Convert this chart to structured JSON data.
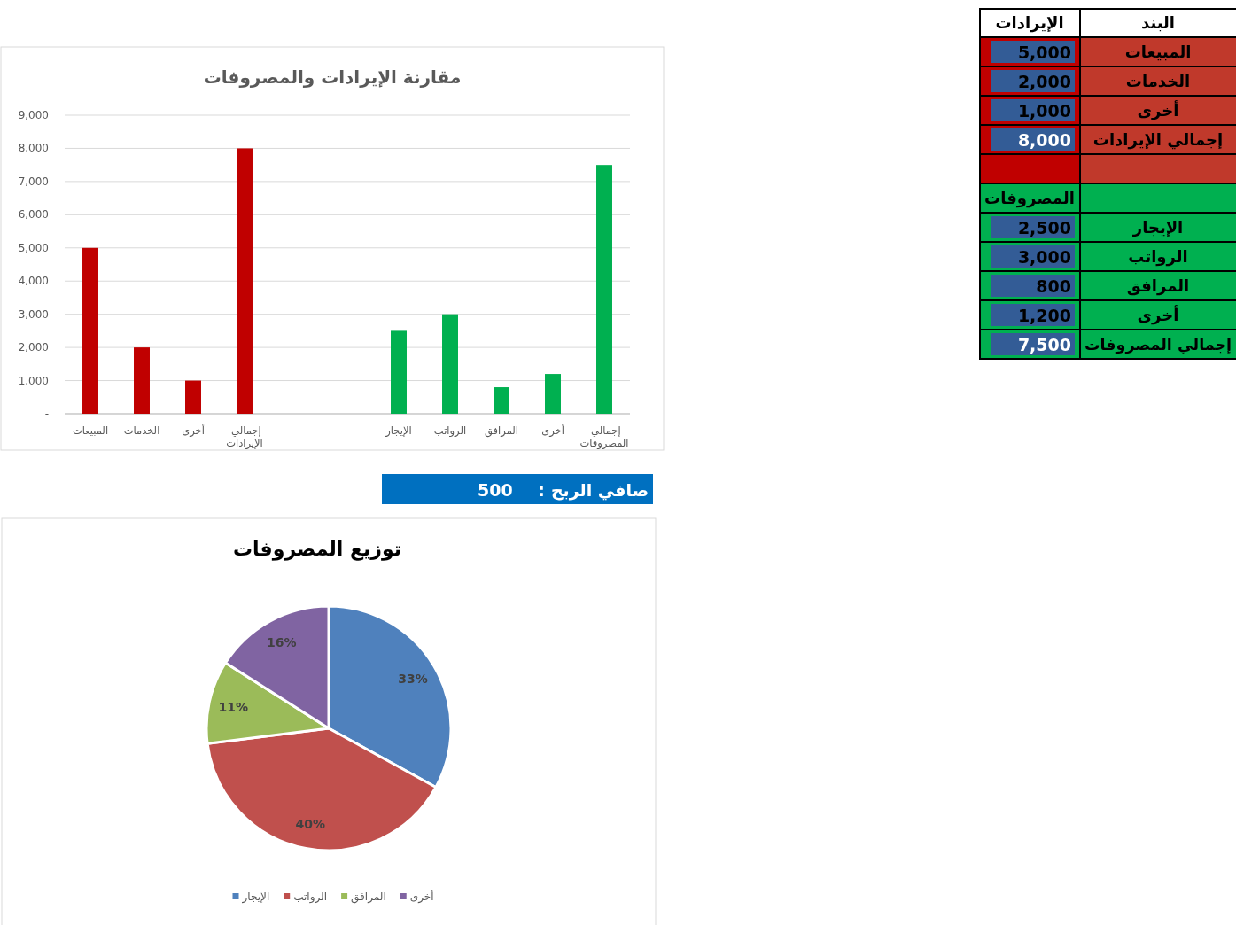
{
  "chart_data": [
    {
      "type": "other",
      "xlabel": "البند",
      "categories": [
        "المبيعات",
        "الخدمات",
        "أخرى",
        "إجمالي الإيرادات",
        null,
        null,
        "الإيجار",
        "الرواتب",
        "المرافق",
        "أخرى",
        "إجمالي المصروفات"
      ],
      "series": [
        {
          "name": "الإيرادات",
          "values": [
            5000,
            2000,
            1000,
            8000,
            null,
            null,
            null,
            null,
            null,
            null,
            null
          ],
          "value_labels": [
            "5,000",
            "2,000",
            "1,000",
            "8,000",
            null,
            null,
            null,
            null,
            null,
            null,
            null
          ]
        },
        {
          "name": "المصروفات",
          "values": [
            null,
            null,
            null,
            null,
            null,
            null,
            2500,
            3000,
            800,
            1200,
            7500
          ],
          "value_labels": [
            null,
            null,
            null,
            null,
            null,
            null,
            "2,500",
            "3,000",
            "800",
            "1,200",
            "7,500"
          ]
        }
      ]
    },
    {
      "type": "bar",
      "title": "مقارنة الإيرادات والمصروفات",
      "categories": [
        "المبيعات",
        "الخدمات",
        "أخرى",
        "إجمالي الإيرادات",
        null,
        null,
        "الإيجار",
        "الرواتب",
        "المرافق",
        "أخرى",
        "إجمالي المصروفات"
      ],
      "values": [
        5000,
        2000,
        1000,
        8000,
        null,
        null,
        2500,
        3000,
        800,
        1200,
        7500
      ],
      "colors": [
        "#c00000",
        "#c00000",
        "#c00000",
        "#c00000",
        null,
        null,
        "#00b050",
        "#00b050",
        "#00b050",
        "#00b050",
        "#00b050"
      ],
      "ylim": [
        0,
        9000
      ],
      "yticks": [
        {
          "value": 0,
          "label": "-"
        },
        {
          "value": 1000,
          "label": "1,000"
        },
        {
          "value": 2000,
          "label": "2,000"
        },
        {
          "value": 3000,
          "label": "3,000"
        },
        {
          "value": 4000,
          "label": "4,000"
        },
        {
          "value": 5000,
          "label": "5,000"
        },
        {
          "value": 6000,
          "label": "6,000"
        },
        {
          "value": 7000,
          "label": "7,000"
        },
        {
          "value": 8000,
          "label": "8,000"
        },
        {
          "value": 9000,
          "label": "9,000"
        }
      ],
      "grid": "y"
    },
    {
      "type": "other",
      "categories": [
        "صافي الربح"
      ],
      "values": [
        500
      ],
      "value_labels": [
        ": 500"
      ],
      "color": "#0070c0"
    },
    {
      "type": "pie",
      "title": "توزيع المصروفات",
      "categories": [
        "الإيجار",
        "الرواتب",
        "المرافق",
        "أخرى"
      ],
      "values": [
        33,
        40,
        11,
        16
      ],
      "colors": [
        "#4f81bd",
        "#c0504d",
        "#9bbb59",
        "#8064a2"
      ],
      "value_labels": [
        "33%",
        "40%",
        "11%",
        "16%"
      ],
      "legend": "bottom"
    }
  ]
}
